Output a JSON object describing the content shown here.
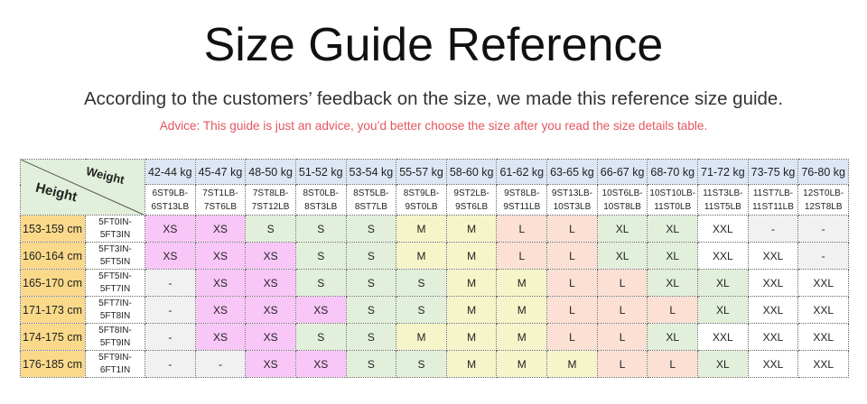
{
  "title": "Size Guide Reference",
  "subtitle": "According to the customers’ feedback on the size, we made this reference size guide.",
  "advice": "Advice: This guide is just an advice, you’d better choose the size after you read the size details table.",
  "colors": {
    "XS": "#f8c6f7",
    "S": "#e2efda",
    "M": "#f6f5c9",
    "L": "#fbe0d3",
    "XL": "#e2efda",
    "XXL": "#ffffff",
    "-": "#f1f1f1",
    "weight_header": "#dce6f4",
    "height_header": "#fad98a",
    "advice_text": "#e4555e"
  },
  "table": {
    "corner_weight": "Weight",
    "corner_height": "Height",
    "weights_kg": [
      "42-44 kg",
      "45-47 kg",
      "48-50 kg",
      "51-52 kg",
      "53-54 kg",
      "55-57 kg",
      "58-60 kg",
      "61-62 kg",
      "63-65 kg",
      "66-67 kg",
      "68-70 kg",
      "71-72 kg",
      "73-75 kg",
      "76-80 kg"
    ],
    "weights_st": [
      [
        "6ST9LB-",
        "6ST13LB"
      ],
      [
        "7ST1LB-",
        "7ST6LB"
      ],
      [
        "7ST8LB-",
        "7ST12LB"
      ],
      [
        "8ST0LB-",
        "8ST3LB"
      ],
      [
        "8ST5LB-",
        "8ST7LB"
      ],
      [
        "8ST9LB-",
        "9ST0LB"
      ],
      [
        "9ST2LB-",
        "9ST6LB"
      ],
      [
        "9ST8LB-",
        "9ST11LB"
      ],
      [
        "9ST13LB-",
        "10ST3LB"
      ],
      [
        "10ST6LB-",
        "10ST8LB"
      ],
      [
        "10ST10LB-",
        "11ST0LB"
      ],
      [
        "11ST3LB-",
        "11ST5LB"
      ],
      [
        "11ST7LB-",
        "11ST11LB"
      ],
      [
        "12ST0LB-",
        "12ST8LB"
      ]
    ],
    "rows": [
      {
        "cm": "153-159 cm",
        "ft": [
          "5FT0IN-",
          "5FT3IN"
        ],
        "sizes": [
          "XS",
          "XS",
          "S",
          "S",
          "S",
          "M",
          "M",
          "L",
          "L",
          "XL",
          "XL",
          "XXL",
          "-",
          "-"
        ]
      },
      {
        "cm": "160-164 cm",
        "ft": [
          "5FT3IN-",
          "5FT5IN"
        ],
        "sizes": [
          "XS",
          "XS",
          "XS",
          "S",
          "S",
          "M",
          "M",
          "L",
          "L",
          "XL",
          "XL",
          "XXL",
          "XXL",
          "-"
        ]
      },
      {
        "cm": "165-170 cm",
        "ft": [
          "5FT5IN-",
          "5FT7IN"
        ],
        "sizes": [
          "-",
          "XS",
          "XS",
          "S",
          "S",
          "S",
          "M",
          "M",
          "L",
          "L",
          "XL",
          "XL",
          "XXL",
          "XXL"
        ]
      },
      {
        "cm": "171-173 cm",
        "ft": [
          "5FT7IN-",
          "5FT8IN"
        ],
        "sizes": [
          "-",
          "XS",
          "XS",
          "XS",
          "S",
          "S",
          "M",
          "M",
          "L",
          "L",
          "L",
          "XL",
          "XXL",
          "XXL"
        ]
      },
      {
        "cm": "174-175 cm",
        "ft": [
          "5FT8IN-",
          "5FT9IN"
        ],
        "sizes": [
          "-",
          "XS",
          "XS",
          "S",
          "S",
          "M",
          "M",
          "M",
          "L",
          "L",
          "XL",
          "XXL",
          "XXL",
          "XXL"
        ]
      },
      {
        "cm": "176-185 cm",
        "ft": [
          "5FT9IN-",
          "6FT1IN"
        ],
        "sizes": [
          "-",
          "-",
          "XS",
          "XS",
          "S",
          "S",
          "M",
          "M",
          "M",
          "L",
          "L",
          "XL",
          "XXL",
          "XXL"
        ]
      }
    ]
  }
}
